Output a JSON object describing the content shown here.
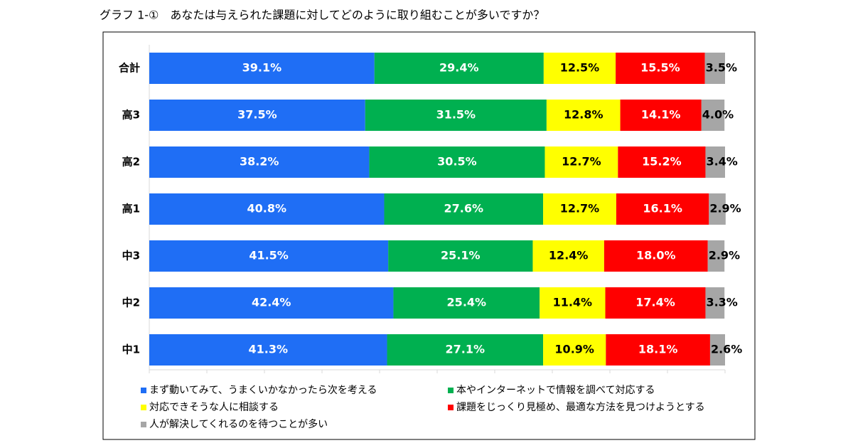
{
  "chart_data": {
    "type": "stacked-bar-horizontal",
    "title": "グラフ 1-①　あなたは与えられた課題に対してどのように取り組むことが多いですか？",
    "categories": [
      "合計",
      "高3",
      "高2",
      "高1",
      "中3",
      "中2",
      "中1"
    ],
    "series": [
      {
        "name": "まず動いてみて、うまくいかなかったら次を考える",
        "color": "#1f6ef5",
        "values": [
          39.1,
          37.5,
          38.2,
          40.8,
          41.5,
          42.4,
          41.3
        ],
        "value_labels": [
          "39.1%",
          "37.5%",
          "38.2%",
          "40.8%",
          "41.5%",
          "42.4%",
          "41.3%"
        ]
      },
      {
        "name": "本やインターネットで情報を調べて対応する",
        "color": "#00b050",
        "values": [
          29.4,
          31.5,
          30.5,
          27.6,
          25.1,
          25.4,
          27.1
        ],
        "value_labels": [
          "29.4%",
          "31.5%",
          "30.5%",
          "27.6%",
          "25.1%",
          "25.4%",
          "27.1%"
        ]
      },
      {
        "name": "対応できそうな人に相談する",
        "color": "#ffff00",
        "values": [
          12.5,
          12.8,
          12.7,
          12.7,
          12.4,
          11.4,
          10.9
        ],
        "value_labels": [
          "12.5%",
          "12.8%",
          "12.7%",
          "12.7%",
          "12.4%",
          "11.4%",
          "10.9%"
        ]
      },
      {
        "name": "課題をじっくり見極め、最適な方法を見つけようとする",
        "color": "#ff0000",
        "values": [
          15.5,
          14.1,
          15.2,
          16.1,
          18.0,
          17.4,
          18.1
        ],
        "value_labels": [
          "15.5%",
          "14.1%",
          "15.2%",
          "16.1%",
          "18.0%",
          "17.4%",
          "18.1%"
        ]
      },
      {
        "name": "人が解決してくれるのを待つことが多い",
        "color": "#a6a6a6",
        "values": [
          3.5,
          4.0,
          3.4,
          2.9,
          2.9,
          3.3,
          2.6
        ],
        "value_labels": [
          "3.5%",
          "4.0%",
          "3.4%",
          "2.9%",
          "2.9%",
          "3.3%",
          "2.6%"
        ]
      }
    ],
    "xlim": [
      0,
      100
    ],
    "xticks": [
      0,
      10,
      20,
      30,
      40,
      50,
      60,
      70,
      80,
      90,
      100
    ]
  }
}
